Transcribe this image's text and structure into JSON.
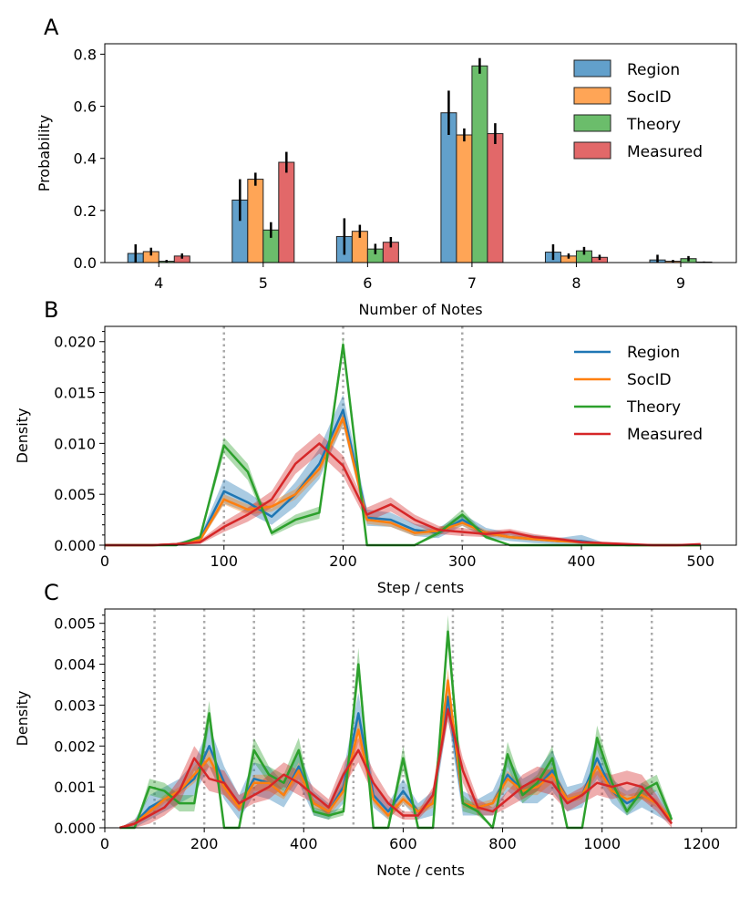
{
  "chart_data": [
    {
      "panel": "A",
      "type": "bar",
      "xlabel": "Number of Notes",
      "ylabel": "Probability",
      "categories": [
        "4",
        "5",
        "6",
        "7",
        "8",
        "9"
      ],
      "ylim": [
        0,
        0.84
      ],
      "yticks": [
        "0.0",
        "0.2",
        "0.4",
        "0.6",
        "0.8"
      ],
      "legend_position": "top-right",
      "series": [
        {
          "name": "Region",
          "color": "#1f77b4",
          "values": [
            0.035,
            0.24,
            0.1,
            0.575,
            0.04,
            0.01
          ],
          "errors": [
            0.035,
            0.08,
            0.07,
            0.085,
            0.03,
            0.02
          ]
        },
        {
          "name": "SocID",
          "color": "#ff7f0e",
          "values": [
            0.042,
            0.32,
            0.12,
            0.49,
            0.025,
            0.005
          ],
          "errors": [
            0.015,
            0.025,
            0.025,
            0.025,
            0.01,
            0.005
          ]
        },
        {
          "name": "Theory",
          "color": "#2ca02c",
          "values": [
            0.005,
            0.125,
            0.052,
            0.755,
            0.045,
            0.015
          ],
          "errors": [
            0.005,
            0.03,
            0.02,
            0.03,
            0.015,
            0.01
          ]
        },
        {
          "name": "Measured",
          "color": "#d62728",
          "values": [
            0.025,
            0.385,
            0.078,
            0.495,
            0.02,
            0.002
          ],
          "errors": [
            0.01,
            0.04,
            0.02,
            0.04,
            0.01,
            0.002
          ]
        }
      ]
    },
    {
      "panel": "B",
      "type": "line",
      "xlabel": "Step / cents",
      "ylabel": "Density",
      "xlim": [
        0,
        530
      ],
      "ylim": [
        0,
        0.0215
      ],
      "xticks": [
        0,
        100,
        200,
        300,
        400,
        500
      ],
      "yticks": [
        "0.000",
        "0.005",
        "0.010",
        "0.015",
        "0.020"
      ],
      "vlines": [
        100,
        200,
        300
      ],
      "legend_position": "top-right",
      "x": [
        0,
        20,
        40,
        60,
        80,
        100,
        120,
        140,
        160,
        180,
        200,
        220,
        240,
        260,
        280,
        300,
        320,
        340,
        360,
        380,
        400,
        420,
        440,
        460,
        480,
        500
      ],
      "series": [
        {
          "name": "Region",
          "color": "#1f77b4",
          "values": [
            0,
            0,
            0,
            0.0001,
            0.0006,
            0.0053,
            0.0042,
            0.0028,
            0.005,
            0.008,
            0.0133,
            0.0027,
            0.0025,
            0.0015,
            0.0012,
            0.0025,
            0.0012,
            0.0008,
            0.0006,
            0.0004,
            0.0004,
            0.0001,
            0,
            0,
            0,
            0
          ],
          "band": [
            0,
            0,
            0,
            0.0001,
            0.0003,
            0.0012,
            0.001,
            0.0008,
            0.0012,
            0.0015,
            0.0015,
            0.0008,
            0.0007,
            0.0006,
            0.0005,
            0.0006,
            0.0005,
            0.0004,
            0.0004,
            0.0003,
            0.0006,
            0.0001,
            0,
            0,
            0,
            0
          ]
        },
        {
          "name": "SocID",
          "color": "#ff7f0e",
          "values": [
            0,
            0,
            0,
            0.0001,
            0.0005,
            0.0045,
            0.0035,
            0.0038,
            0.005,
            0.0075,
            0.0125,
            0.0025,
            0.0022,
            0.0012,
            0.0014,
            0.0022,
            0.0012,
            0.0008,
            0.0006,
            0.0004,
            0.0003,
            0.0001,
            0,
            0,
            0,
            0
          ],
          "band": [
            0,
            0,
            0,
            0,
            0.0002,
            0.0005,
            0.0005,
            0.0005,
            0.0005,
            0.0006,
            0.0007,
            0.0004,
            0.0004,
            0.0003,
            0.0003,
            0.0003,
            0.0003,
            0.0002,
            0.0002,
            0.0001,
            0.0001,
            0,
            0,
            0,
            0,
            0
          ]
        },
        {
          "name": "Theory",
          "color": "#2ca02c",
          "values": [
            0,
            0,
            0,
            0,
            0.0008,
            0.0098,
            0.0072,
            0.0012,
            0.0025,
            0.0032,
            0.0197,
            0,
            0,
            0,
            0.0012,
            0.003,
            0.0008,
            0,
            0,
            0,
            0,
            0,
            0,
            0,
            0,
            0
          ],
          "band": [
            0,
            0,
            0,
            0,
            0.0002,
            0.0008,
            0.0008,
            0.0003,
            0.0005,
            0.0006,
            0.0008,
            0,
            0,
            0,
            0.0003,
            0.0005,
            0.0002,
            0,
            0,
            0,
            0,
            0,
            0,
            0,
            0,
            0
          ]
        },
        {
          "name": "Measured",
          "color": "#d62728",
          "values": [
            0,
            0,
            0,
            0.0001,
            0.0003,
            0.0018,
            0.003,
            0.0045,
            0.008,
            0.01,
            0.0078,
            0.003,
            0.004,
            0.0025,
            0.0015,
            0.0013,
            0.0011,
            0.0013,
            0.0008,
            0.0006,
            0.0003,
            0.0002,
            0.0001,
            0,
            0,
            0.0001
          ],
          "band": [
            0,
            0,
            0,
            0,
            0.0002,
            0.0005,
            0.0007,
            0.0008,
            0.001,
            0.001,
            0.001,
            0.0007,
            0.0007,
            0.0005,
            0.0004,
            0.0004,
            0.0003,
            0.0003,
            0.0003,
            0.0002,
            0.0002,
            0.0001,
            0,
            0,
            0,
            0
          ]
        }
      ]
    },
    {
      "panel": "C",
      "type": "line",
      "xlabel": "Note / cents",
      "ylabel": "Density",
      "xlim": [
        0,
        1270
      ],
      "ylim": [
        0,
        0.00535
      ],
      "xticks": [
        0,
        200,
        400,
        600,
        800,
        1000,
        1200
      ],
      "yticks": [
        "0.000",
        "0.001",
        "0.002",
        "0.003",
        "0.004",
        "0.005"
      ],
      "vlines": [
        100,
        200,
        300,
        400,
        500,
        600,
        700,
        800,
        900,
        1000,
        1100
      ],
      "x": [
        30,
        60,
        90,
        120,
        150,
        180,
        210,
        240,
        270,
        300,
        330,
        360,
        390,
        420,
        450,
        480,
        510,
        540,
        570,
        600,
        630,
        660,
        690,
        720,
        750,
        780,
        810,
        840,
        870,
        900,
        930,
        960,
        990,
        1020,
        1050,
        1080,
        1110,
        1140
      ],
      "series": [
        {
          "name": "Region",
          "color": "#1f77b4",
          "values": [
            0,
            0.0001,
            0.0005,
            0.0007,
            0.0009,
            0.0012,
            0.002,
            0.0011,
            0.0005,
            0.0012,
            0.0011,
            0.0008,
            0.0015,
            0.0006,
            0.0004,
            0.001,
            0.0028,
            0.0008,
            0.0004,
            0.0009,
            0.0004,
            0.0006,
            0.0032,
            0.0006,
            0.0005,
            0.0006,
            0.0013,
            0.0009,
            0.001,
            0.0014,
            0.0007,
            0.0008,
            0.0017,
            0.0009,
            0.0006,
            0.0008,
            0.0006,
            0.0002
          ],
          "band": [
            0,
            0.0001,
            0.0003,
            0.0003,
            0.0003,
            0.0004,
            0.0005,
            0.0004,
            0.0003,
            0.0004,
            0.0004,
            0.0003,
            0.0004,
            0.0003,
            0.0002,
            0.0004,
            0.0005,
            0.0003,
            0.0002,
            0.0003,
            0.0002,
            0.0003,
            0.0005,
            0.0003,
            0.0002,
            0.0003,
            0.0004,
            0.0003,
            0.0004,
            0.0005,
            0.0003,
            0.0003,
            0.0005,
            0.0003,
            0.0003,
            0.0003,
            0.0003,
            0.0001
          ]
        },
        {
          "name": "SocID",
          "color": "#ff7f0e",
          "values": [
            0,
            0.0001,
            0.0004,
            0.0007,
            0.0009,
            0.0013,
            0.0017,
            0.001,
            0.0005,
            0.0011,
            0.0011,
            0.0008,
            0.0014,
            0.0006,
            0.0004,
            0.0009,
            0.0024,
            0.0007,
            0.0003,
            0.0007,
            0.0004,
            0.0006,
            0.0036,
            0.0006,
            0.0005,
            0.0006,
            0.0012,
            0.0009,
            0.001,
            0.0013,
            0.0007,
            0.0008,
            0.0015,
            0.0009,
            0.0007,
            0.0008,
            0.0006,
            0.0002
          ],
          "band": [
            0,
            0,
            0.0001,
            0.0001,
            0.0001,
            0.0002,
            0.0002,
            0.0002,
            0.0001,
            0.0002,
            0.0002,
            0.0001,
            0.0002,
            0.0001,
            0.0001,
            0.0002,
            0.0003,
            0.0001,
            0.0001,
            0.0001,
            0.0001,
            0.0001,
            0.0003,
            0.0001,
            0.0001,
            0.0001,
            0.0002,
            0.0001,
            0.0002,
            0.0002,
            0.0001,
            0.0001,
            0.0002,
            0.0001,
            0.0001,
            0.0001,
            0.0001,
            0
          ]
        },
        {
          "name": "Theory",
          "color": "#2ca02c",
          "values": [
            0,
            0,
            0.001,
            0.0009,
            0.0006,
            0.0006,
            0.0028,
            0,
            0,
            0.0019,
            0.0013,
            0.0011,
            0.0019,
            0.0004,
            0.0003,
            0.0004,
            0.004,
            0,
            0,
            0.0017,
            0,
            0,
            0.0048,
            0.0006,
            0.0004,
            0,
            0.0018,
            0.0008,
            0.0011,
            0.0017,
            0,
            0,
            0.0022,
            0.0011,
            0.0004,
            0.0009,
            0.0011,
            0.0002
          ],
          "band": [
            0,
            0,
            0.0002,
            0.0002,
            0.0002,
            0.0002,
            0.0003,
            0,
            0,
            0.0003,
            0.0002,
            0.0002,
            0.0003,
            0.0001,
            0.0001,
            0.0001,
            0.0004,
            0,
            0,
            0.0003,
            0,
            0,
            0.0004,
            0.0002,
            0.0001,
            0,
            0.0003,
            0.0002,
            0.0002,
            0.0003,
            0,
            0,
            0.0003,
            0.0002,
            0.0001,
            0.0002,
            0.0002,
            0.0001
          ]
        },
        {
          "name": "Measured",
          "color": "#d62728",
          "values": [
            0,
            0.0001,
            0.0003,
            0.0005,
            0.0009,
            0.0017,
            0.0012,
            0.0011,
            0.0006,
            0.0008,
            0.001,
            0.0013,
            0.0011,
            0.0008,
            0.0005,
            0.0013,
            0.0019,
            0.0011,
            0.0006,
            0.0003,
            0.0003,
            0.0008,
            0.0029,
            0.0014,
            0.0005,
            0.0004,
            0.0007,
            0.001,
            0.0012,
            0.0011,
            0.0006,
            0.0008,
            0.0011,
            0.001,
            0.0011,
            0.001,
            0.0006,
            0.0001
          ],
          "band": [
            0,
            0.0001,
            0.0002,
            0.0002,
            0.0003,
            0.0003,
            0.0003,
            0.0003,
            0.0002,
            0.0002,
            0.0003,
            0.0003,
            0.0003,
            0.0002,
            0.0002,
            0.0003,
            0.0003,
            0.0003,
            0.0002,
            0.0001,
            0.0001,
            0.0002,
            0.0003,
            0.0003,
            0.0002,
            0.0001,
            0.0002,
            0.0003,
            0.0003,
            0.0003,
            0.0002,
            0.0002,
            0.0003,
            0.0003,
            0.0003,
            0.0003,
            0.0002,
            0.0001
          ]
        }
      ]
    }
  ]
}
